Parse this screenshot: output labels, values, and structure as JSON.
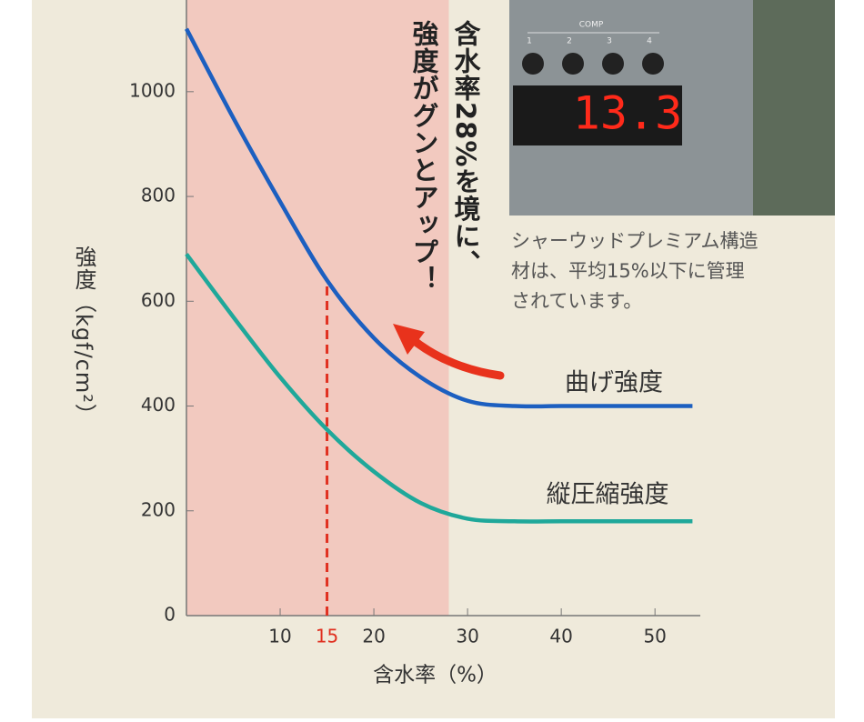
{
  "chart_data": {
    "type": "line",
    "x_label": "含水率（%）",
    "y_label": "強度（kgf/cm²）",
    "x": [
      0,
      5,
      10,
      15,
      20,
      25,
      30,
      35,
      40,
      45,
      50,
      54
    ],
    "series": [
      {
        "name": "曲げ強度",
        "color": "#1c5fc0",
        "values": [
          1120,
          950,
          790,
          640,
          530,
          455,
          410,
          400,
          400,
          400,
          400,
          400
        ]
      },
      {
        "name": "縦圧縮強度",
        "color": "#1fa89a",
        "values": [
          690,
          570,
          455,
          355,
          275,
          215,
          185,
          180,
          180,
          180,
          180,
          180
        ]
      }
    ],
    "xlim": [
      0,
      56
    ],
    "ylim": [
      0,
      1175
    ],
    "xticks": [
      10,
      15,
      20,
      30,
      40,
      50
    ],
    "yticks": [
      0,
      200,
      400,
      600,
      800,
      1000
    ],
    "shade": {
      "x": [
        0,
        28
      ],
      "color": "#f2c9bf"
    },
    "marker": {
      "x": 15,
      "y": 630,
      "color": "#e03020"
    },
    "annotation": [
      "含水率28%を境に、",
      "強度がグンとアップ！"
    ],
    "photo": {
      "panel_label": "COMP",
      "buttons": [
        "1",
        "2",
        "3",
        "4"
      ],
      "display": "13.3"
    },
    "caption": [
      "シャーウッドプレミアム構造",
      "材は、平均15%以下に管理",
      "されています。"
    ]
  }
}
